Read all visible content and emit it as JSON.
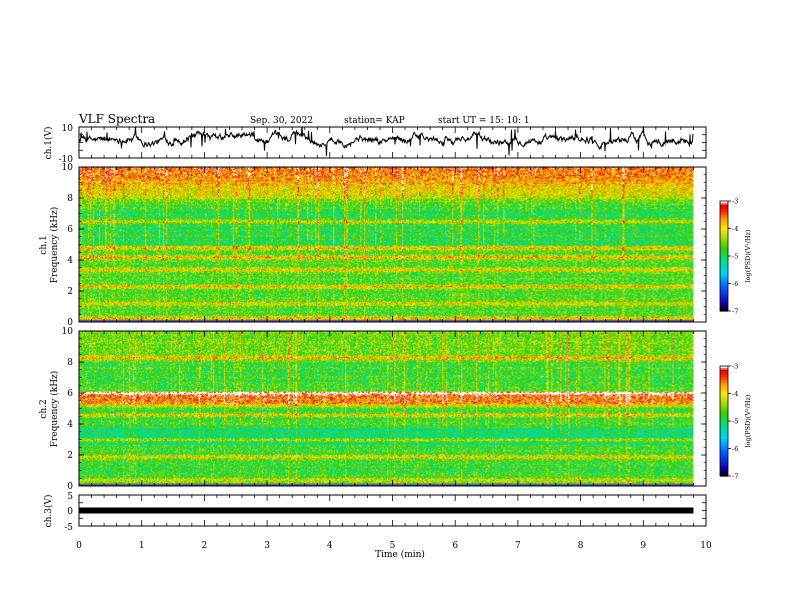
{
  "header": {
    "title": "VLF Spectra",
    "date": "Sep. 30, 2022",
    "station": "station= KAP",
    "start": "start  UT =   15: 10: 1"
  },
  "colors": {
    "axes": "#000000",
    "waveform": "#000000",
    "colormap": [
      "#000000",
      "#1400a8",
      "#005aff",
      "#00d2ff",
      "#00e07a",
      "#3ccc00",
      "#b4dc00",
      "#ffe600",
      "#ffa000",
      "#ff2a00",
      "#e40000",
      "#ffffff"
    ]
  },
  "chart_data": [
    {
      "type": "line",
      "name": "ch1-waveform",
      "ylabel": "ch.1(V)",
      "ylim": [
        -10,
        10
      ],
      "yticks": [
        "10",
        "-10"
      ],
      "xlim": [
        0,
        10
      ],
      "x_extent": [
        0,
        9.8
      ],
      "baseline_v": 2,
      "amplitude_v": 6
    },
    {
      "type": "heatmap",
      "name": "ch1-spectrogram",
      "ylabel_line1": "ch.1",
      "ylabel_line2": "Frequency (kHz)",
      "ylim": [
        0,
        10
      ],
      "yticks": [
        "0",
        "2",
        "4",
        "6",
        "8",
        "10"
      ],
      "xlim": [
        0,
        10
      ],
      "x_extent": [
        0,
        9.8
      ],
      "bands_khz": [
        0.3,
        1.2,
        2.3,
        3.4,
        4.2,
        4.8,
        6.5
      ],
      "colorbar": {
        "label": "log(PSD)(V²/Hz)",
        "range": [
          -7,
          -3
        ],
        "ticks": [
          "-3",
          "-4",
          "-5",
          "-6",
          "-7"
        ]
      }
    },
    {
      "type": "heatmap",
      "name": "ch2-spectrogram",
      "ylabel_line1": "ch.2",
      "ylabel_line2": "Frequency (kHz)",
      "ylim": [
        0,
        10
      ],
      "yticks": [
        "0",
        "2",
        "4",
        "6",
        "8",
        "10"
      ],
      "xlim": [
        0,
        10
      ],
      "x_extent": [
        0,
        9.8
      ],
      "bands_khz": [
        0.4,
        1.9,
        3.0,
        4.6,
        5.2,
        6.0,
        8.3
      ],
      "colorbar": {
        "label": "log(PSD)(V²/Hz)",
        "range": [
          -7,
          -3
        ],
        "ticks": [
          "-3",
          "-4",
          "-5",
          "-6",
          "-7"
        ]
      }
    },
    {
      "type": "line",
      "name": "ch3-trace",
      "ylabel": "ch.3(V)",
      "ylim": [
        -5,
        5
      ],
      "yticks": [
        "5",
        "0",
        "-5"
      ],
      "xlim": [
        0,
        10
      ],
      "x_extent": [
        0,
        9.8
      ],
      "value_v": 0,
      "xlabel": "Time  (min)",
      "xticks": [
        "0",
        "1",
        "2",
        "3",
        "4",
        "5",
        "6",
        "7",
        "8",
        "9",
        "10"
      ]
    }
  ]
}
